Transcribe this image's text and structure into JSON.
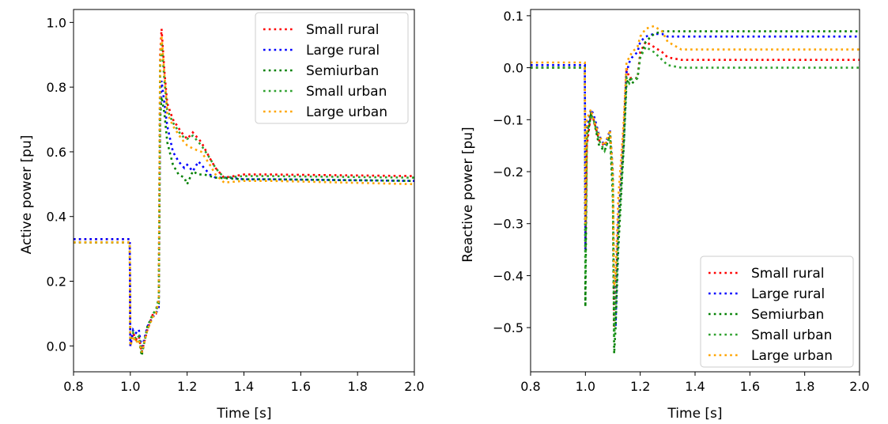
{
  "chart_data": [
    {
      "type": "line",
      "xlabel": "Time [s]",
      "ylabel": "Active power [pu]",
      "xlim": [
        0.8,
        2.0
      ],
      "ylim": [
        -0.08,
        1.04
      ],
      "xticks": [
        0.8,
        1.0,
        1.2,
        1.4,
        1.6,
        1.8,
        2.0
      ],
      "xtick_labels": [
        "0.8",
        "1.0",
        "1.2",
        "1.4",
        "1.6",
        "1.8",
        "2.0"
      ],
      "yticks": [
        0.0,
        0.2,
        0.4,
        0.6,
        0.8,
        1.0
      ],
      "ytick_labels": [
        "0.0",
        "0.2",
        "0.4",
        "0.6",
        "0.8",
        "1.0"
      ],
      "grid": false,
      "legend": "top-right",
      "line_style": "dotted",
      "series": [
        {
          "name": "Small rural",
          "color": "#ff0000",
          "x": [
            0.8,
            0.998,
            1.0,
            1.01,
            1.02,
            1.03,
            1.04,
            1.06,
            1.08,
            1.09,
            1.1,
            1.105,
            1.11,
            1.12,
            1.13,
            1.15,
            1.18,
            1.2,
            1.22,
            1.25,
            1.28,
            1.3,
            1.33,
            1.4,
            1.5,
            2.0
          ],
          "y": [
            0.33,
            0.33,
            0.0,
            0.04,
            0.02,
            0.03,
            -0.02,
            0.05,
            0.1,
            0.1,
            0.15,
            0.9,
            0.98,
            0.85,
            0.75,
            0.7,
            0.66,
            0.64,
            0.66,
            0.63,
            0.58,
            0.55,
            0.52,
            0.53,
            0.53,
            0.525
          ]
        },
        {
          "name": "Large rural",
          "color": "#0000ff",
          "x": [
            0.8,
            0.998,
            1.0,
            1.01,
            1.02,
            1.03,
            1.04,
            1.06,
            1.08,
            1.09,
            1.1,
            1.105,
            1.11,
            1.12,
            1.13,
            1.15,
            1.17,
            1.19,
            1.2,
            1.22,
            1.24,
            1.26,
            1.28,
            1.3,
            1.35,
            1.4,
            1.5,
            2.0
          ],
          "y": [
            0.33,
            0.33,
            0.0,
            0.05,
            0.04,
            0.05,
            -0.01,
            0.06,
            0.09,
            0.1,
            0.12,
            0.72,
            0.82,
            0.75,
            0.68,
            0.6,
            0.57,
            0.55,
            0.56,
            0.54,
            0.57,
            0.55,
            0.53,
            0.52,
            0.52,
            0.515,
            0.515,
            0.51
          ]
        },
        {
          "name": "Semiurban",
          "color": "#008000",
          "x": [
            0.8,
            0.998,
            1.0,
            1.01,
            1.02,
            1.03,
            1.04,
            1.06,
            1.08,
            1.09,
            1.1,
            1.105,
            1.11,
            1.12,
            1.13,
            1.15,
            1.17,
            1.19,
            1.2,
            1.21,
            1.22,
            1.24,
            1.26,
            1.3,
            1.4,
            1.5,
            2.0
          ],
          "y": [
            0.32,
            0.32,
            0.0,
            0.03,
            0.01,
            0.02,
            -0.03,
            0.06,
            0.1,
            0.11,
            0.13,
            0.7,
            0.77,
            0.72,
            0.63,
            0.56,
            0.53,
            0.52,
            0.5,
            0.52,
            0.54,
            0.53,
            0.53,
            0.52,
            0.515,
            0.515,
            0.51
          ]
        },
        {
          "name": "Small urban",
          "color": "#2ca02c",
          "x": [
            0.8,
            0.998,
            1.0,
            1.01,
            1.02,
            1.03,
            1.04,
            1.06,
            1.08,
            1.09,
            1.1,
            1.105,
            1.11,
            1.12,
            1.13,
            1.15,
            1.18,
            1.2,
            1.22,
            1.25,
            1.28,
            1.3,
            1.33,
            1.4,
            1.5,
            2.0
          ],
          "y": [
            0.32,
            0.32,
            0.0,
            0.04,
            0.02,
            0.03,
            -0.02,
            0.05,
            0.1,
            0.11,
            0.15,
            0.86,
            0.94,
            0.82,
            0.73,
            0.69,
            0.65,
            0.64,
            0.65,
            0.62,
            0.58,
            0.55,
            0.52,
            0.525,
            0.525,
            0.52
          ]
        },
        {
          "name": "Large urban",
          "color": "#ffa500",
          "x": [
            0.8,
            0.998,
            1.0,
            1.01,
            1.02,
            1.03,
            1.04,
            1.06,
            1.08,
            1.09,
            1.1,
            1.105,
            1.11,
            1.12,
            1.13,
            1.15,
            1.18,
            1.2,
            1.22,
            1.25,
            1.28,
            1.3,
            1.33,
            1.4,
            1.5,
            2.0
          ],
          "y": [
            0.32,
            0.32,
            0.0,
            0.03,
            0.01,
            0.02,
            -0.02,
            0.05,
            0.09,
            0.1,
            0.14,
            0.88,
            0.96,
            0.84,
            0.72,
            0.68,
            0.64,
            0.62,
            0.61,
            0.6,
            0.56,
            0.53,
            0.505,
            0.51,
            0.51,
            0.5
          ]
        }
      ]
    },
    {
      "type": "line",
      "xlabel": "Time [s]",
      "ylabel": "Reactive power [pu]",
      "xlim": [
        0.8,
        2.0
      ],
      "ylim": [
        -0.585,
        0.112
      ],
      "xticks": [
        0.8,
        1.0,
        1.2,
        1.4,
        1.6,
        1.8,
        2.0
      ],
      "xtick_labels": [
        "0.8",
        "1.0",
        "1.2",
        "1.4",
        "1.6",
        "1.8",
        "2.0"
      ],
      "yticks": [
        -0.5,
        -0.4,
        -0.3,
        -0.2,
        -0.1,
        0.0,
        0.1
      ],
      "ytick_labels": [
        "−0.5",
        "−0.4",
        "−0.3",
        "−0.2",
        "−0.1",
        "0.0",
        "0.1"
      ],
      "grid": false,
      "legend": "bottom-right",
      "line_style": "dotted",
      "series": [
        {
          "name": "Small rural",
          "color": "#ff0000",
          "x": [
            0.8,
            0.998,
            1.0,
            1.005,
            1.02,
            1.03,
            1.05,
            1.07,
            1.09,
            1.1,
            1.105,
            1.11,
            1.12,
            1.14,
            1.15,
            1.16,
            1.17,
            1.19,
            1.2,
            1.22,
            1.25,
            1.28,
            1.3,
            1.35,
            1.4,
            2.0
          ],
          "y": [
            0.0,
            0.0,
            -0.35,
            -0.15,
            -0.09,
            -0.1,
            -0.14,
            -0.15,
            -0.13,
            -0.22,
            -0.5,
            -0.44,
            -0.3,
            -0.12,
            0.0,
            -0.02,
            -0.02,
            -0.02,
            0.03,
            0.05,
            0.04,
            0.03,
            0.02,
            0.015,
            0.015,
            0.015
          ]
        },
        {
          "name": "Large rural",
          "color": "#0000ff",
          "x": [
            0.8,
            0.998,
            1.0,
            1.005,
            1.02,
            1.03,
            1.05,
            1.07,
            1.09,
            1.1,
            1.105,
            1.11,
            1.12,
            1.14,
            1.15,
            1.16,
            1.17,
            1.19,
            1.2,
            1.22,
            1.25,
            1.28,
            1.3,
            1.35,
            1.4,
            2.0
          ],
          "y": [
            0.005,
            0.005,
            -0.35,
            -0.12,
            -0.08,
            -0.09,
            -0.13,
            -0.15,
            -0.12,
            -0.2,
            -0.45,
            -0.5,
            -0.3,
            -0.14,
            -0.01,
            0.01,
            0.02,
            0.03,
            0.05,
            0.06,
            0.065,
            0.065,
            0.06,
            0.06,
            0.06,
            0.06
          ]
        },
        {
          "name": "Semiurban",
          "color": "#008000",
          "x": [
            0.8,
            0.998,
            1.0,
            1.005,
            1.02,
            1.03,
            1.05,
            1.07,
            1.09,
            1.1,
            1.105,
            1.11,
            1.12,
            1.14,
            1.15,
            1.16,
            1.17,
            1.19,
            1.2,
            1.22,
            1.25,
            1.28,
            1.3,
            1.35,
            1.4,
            2.0
          ],
          "y": [
            0.0,
            0.0,
            -0.46,
            -0.14,
            -0.09,
            -0.1,
            -0.15,
            -0.16,
            -0.13,
            -0.25,
            -0.55,
            -0.5,
            -0.35,
            -0.15,
            -0.03,
            -0.02,
            -0.03,
            -0.02,
            0.02,
            0.05,
            0.065,
            0.07,
            0.07,
            0.07,
            0.07,
            0.07
          ]
        },
        {
          "name": "Small urban",
          "color": "#2ca02c",
          "x": [
            0.8,
            0.998,
            1.0,
            1.005,
            1.02,
            1.03,
            1.05,
            1.07,
            1.09,
            1.1,
            1.105,
            1.11,
            1.12,
            1.14,
            1.15,
            1.16,
            1.17,
            1.19,
            1.2,
            1.22,
            1.25,
            1.28,
            1.3,
            1.35,
            1.4,
            2.0
          ],
          "y": [
            0.0,
            0.0,
            -0.4,
            -0.13,
            -0.09,
            -0.1,
            -0.14,
            -0.16,
            -0.13,
            -0.22,
            -0.52,
            -0.46,
            -0.32,
            -0.14,
            -0.02,
            -0.03,
            -0.02,
            -0.02,
            0.02,
            0.04,
            0.03,
            0.015,
            0.005,
            0.0,
            0.0,
            0.0
          ]
        },
        {
          "name": "Large urban",
          "color": "#ffa500",
          "x": [
            0.8,
            0.998,
            1.0,
            1.005,
            1.02,
            1.03,
            1.05,
            1.07,
            1.09,
            1.1,
            1.105,
            1.11,
            1.12,
            1.14,
            1.15,
            1.16,
            1.17,
            1.19,
            1.2,
            1.22,
            1.25,
            1.28,
            1.3,
            1.35,
            1.4,
            2.0
          ],
          "y": [
            0.01,
            0.01,
            -0.3,
            -0.1,
            -0.08,
            -0.1,
            -0.13,
            -0.15,
            -0.12,
            -0.2,
            -0.42,
            -0.4,
            -0.25,
            -0.1,
            0.01,
            0.02,
            0.03,
            0.04,
            0.06,
            0.075,
            0.08,
            0.07,
            0.05,
            0.035,
            0.035,
            0.035
          ]
        }
      ]
    }
  ]
}
